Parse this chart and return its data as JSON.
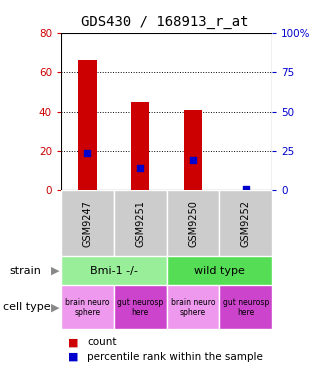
{
  "title": "GDS430 / 168913_r_at",
  "samples": [
    "GSM9247",
    "GSM9251",
    "GSM9250",
    "GSM9252"
  ],
  "counts": [
    66,
    45,
    41,
    0
  ],
  "percentiles": [
    24,
    14,
    19,
    1
  ],
  "ylim_left": [
    0,
    80
  ],
  "ylim_right": [
    0,
    100
  ],
  "yticks_left": [
    0,
    20,
    40,
    60,
    80
  ],
  "yticks_right": [
    0,
    25,
    50,
    75,
    100
  ],
  "yticklabels_right": [
    "0",
    "25",
    "50",
    "75",
    "100%"
  ],
  "bar_color": "#cc0000",
  "dot_color": "#0000cc",
  "strain_info": [
    {
      "label": "Bmi-1 -/-",
      "start": 0,
      "end": 2,
      "color": "#99ee99"
    },
    {
      "label": "wild type",
      "start": 2,
      "end": 4,
      "color": "#55dd55"
    }
  ],
  "cell_type_info": [
    {
      "label": "brain neuro\nsphere",
      "color": "#ee99ee"
    },
    {
      "label": "gut neurosp\nhere",
      "color": "#cc44cc"
    },
    {
      "label": "brain neuro\nsphere",
      "color": "#ee99ee"
    },
    {
      "label": "gut neurosp\nhere",
      "color": "#cc44cc"
    }
  ],
  "sample_box_color": "#cccccc",
  "bg_color": "#ffffff",
  "left_tick_color": "#cc0000",
  "right_tick_color": "#0000cc",
  "title_fontsize": 10,
  "tick_fontsize": 7.5,
  "bar_width": 0.35
}
